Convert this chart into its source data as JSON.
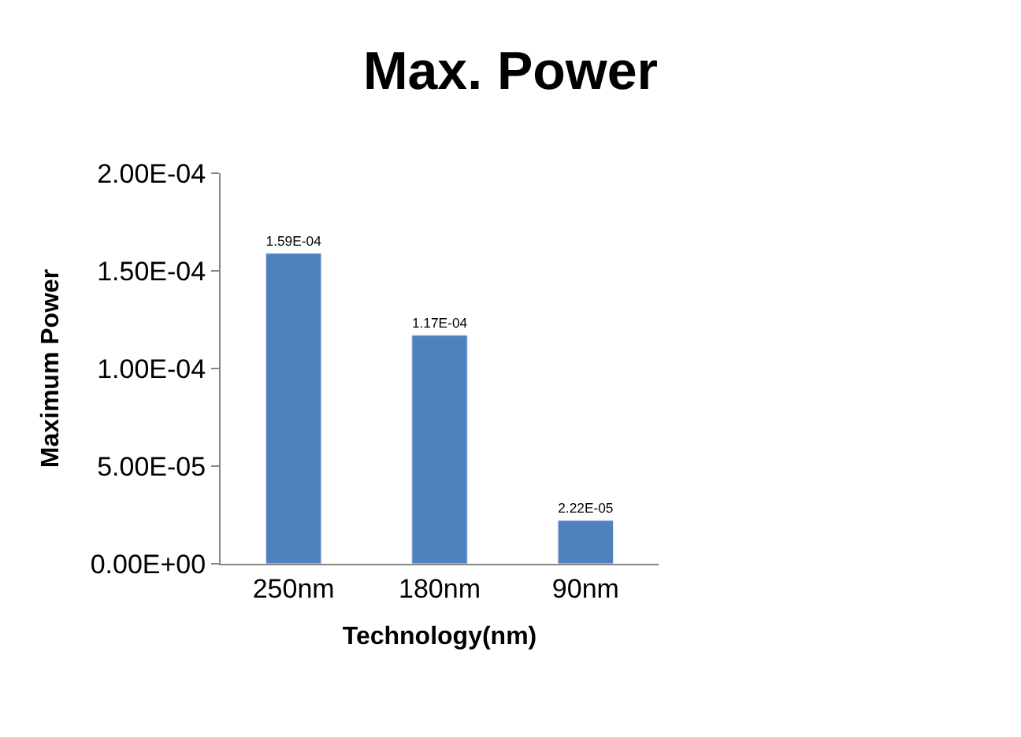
{
  "chart_data": {
    "type": "bar",
    "title": "Max. Power",
    "xlabel": "Technology(nm)",
    "ylabel": "Maximum Power",
    "categories": [
      "250nm",
      "180nm",
      "90nm"
    ],
    "values": [
      0.000159,
      0.000117,
      2.22e-05
    ],
    "value_labels": [
      "1.59E-04",
      "1.17E-04",
      "2.22E-05"
    ],
    "color": "#4f81bd",
    "ylim": [
      0,
      0.0002
    ],
    "yticks": [
      {
        "value": 0,
        "label": "0.00E+00"
      },
      {
        "value": 5e-05,
        "label": "5.00E-05"
      },
      {
        "value": 0.0001,
        "label": "1.00E-04"
      },
      {
        "value": 0.00015,
        "label": "1.50E-04"
      },
      {
        "value": 0.0002,
        "label": "2.00E-04"
      }
    ],
    "grid": false,
    "legend": false
  }
}
